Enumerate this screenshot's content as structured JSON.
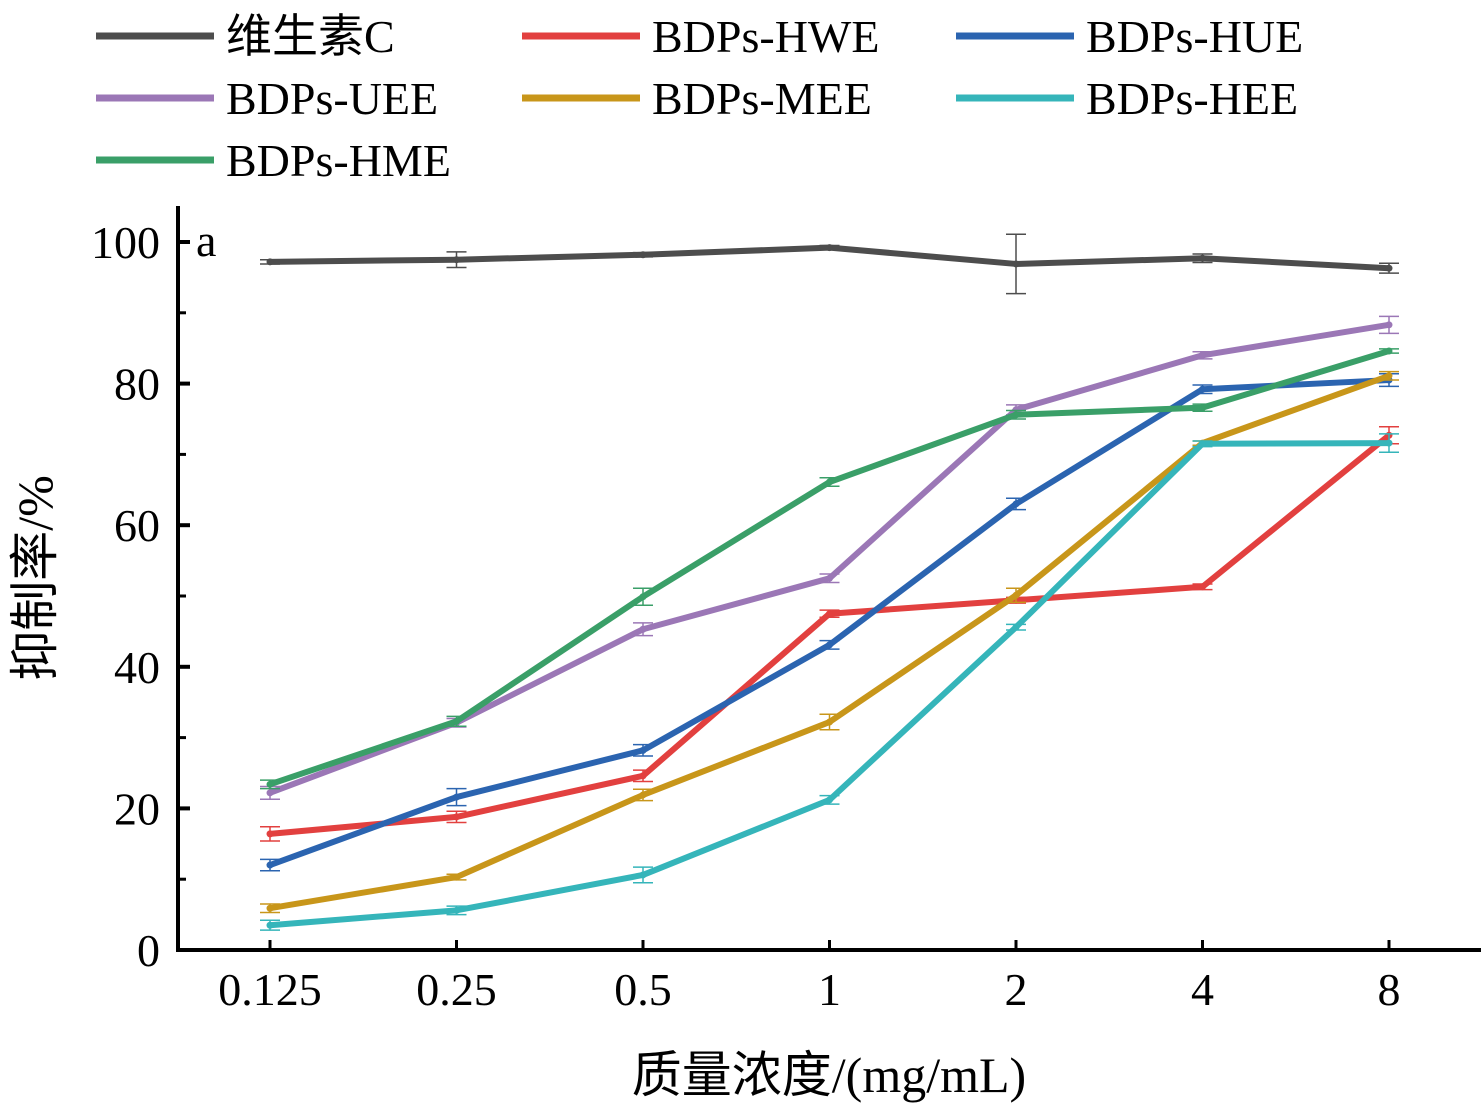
{
  "chart_data": {
    "type": "line",
    "title": "",
    "panel_label": "a",
    "xlabel": "质量浓度/(mg/mL)",
    "ylabel": "抑制率/%",
    "categories": [
      "0.125",
      "0.25",
      "0.5",
      "1",
      "2",
      "4",
      "8"
    ],
    "ylim": [
      0,
      105
    ],
    "yticks": [
      0,
      20,
      40,
      60,
      80,
      100
    ],
    "yticks_minor": [
      10,
      30,
      50,
      70,
      90
    ],
    "grid": false,
    "legend_position": "top",
    "series": [
      {
        "name": "维生素C",
        "color": "#4d4d4d",
        "values": [
          97.2,
          97.5,
          98.2,
          99.2,
          96.9,
          97.7,
          96.3
        ],
        "errors": [
          0.3,
          1.1,
          0.3,
          0.3,
          4.2,
          0.6,
          0.7
        ]
      },
      {
        "name": "BDPs-HWE",
        "color": "#e2403f",
        "values": [
          16.4,
          18.8,
          24.6,
          47.5,
          49.4,
          51.3,
          72.7
        ],
        "errors": [
          1.0,
          0.8,
          0.8,
          0.5,
          0.4,
          0.4,
          1.2
        ]
      },
      {
        "name": "BDPs-HUE",
        "color": "#2b64b0",
        "values": [
          12.0,
          21.6,
          28.2,
          43.1,
          63.0,
          79.2,
          80.5
        ],
        "errors": [
          0.8,
          1.2,
          0.8,
          0.6,
          0.8,
          0.6,
          0.9
        ]
      },
      {
        "name": "BDPs-UEE",
        "color": "#9b77b6",
        "values": [
          22.2,
          32.1,
          45.3,
          52.5,
          76.3,
          84.0,
          88.3
        ],
        "errors": [
          0.9,
          0.6,
          0.9,
          0.6,
          0.7,
          0.5,
          1.2
        ]
      },
      {
        "name": "BDPs-MEE",
        "color": "#c8961a",
        "values": [
          5.9,
          10.3,
          21.9,
          32.2,
          50.1,
          71.6,
          81.1
        ],
        "errors": [
          0.6,
          0.4,
          0.8,
          1.1,
          1.0,
          0.3,
          0.6
        ]
      },
      {
        "name": "BDPs-HEE",
        "color": "#35b5ba",
        "values": [
          3.5,
          5.6,
          10.6,
          21.2,
          45.6,
          71.5,
          71.6
        ],
        "errors": [
          0.7,
          0.6,
          1.1,
          0.6,
          0.4,
          0.4,
          1.3
        ]
      },
      {
        "name": "BDPs-HME",
        "color": "#3a9f68",
        "values": [
          23.4,
          32.3,
          49.9,
          66.1,
          75.6,
          76.6,
          84.6
        ],
        "errors": [
          0.6,
          0.7,
          1.2,
          0.6,
          0.6,
          0.5,
          0.3
        ]
      }
    ]
  }
}
